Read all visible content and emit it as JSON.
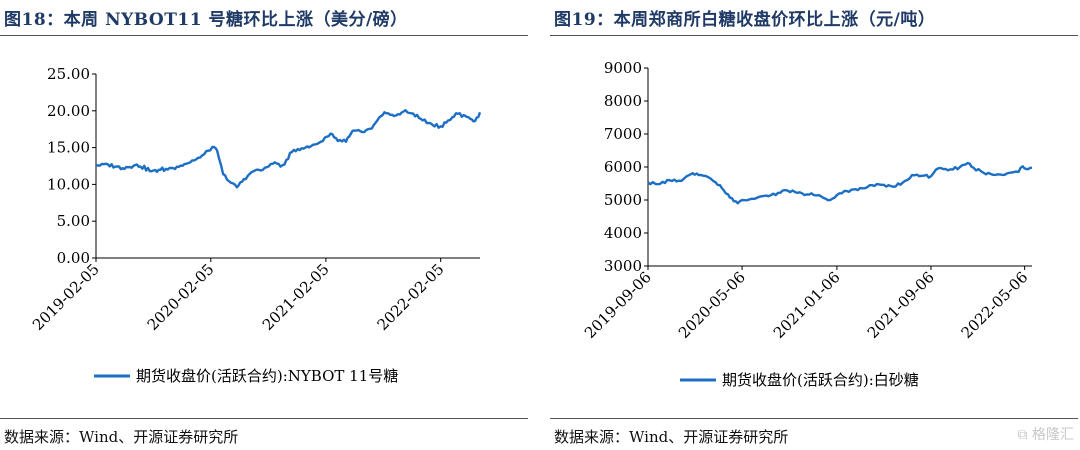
{
  "left": {
    "title": "图18：本周 NYBOT11 号糖环比上涨（美分/磅）",
    "source": "数据来源：Wind、开源证券研究所",
    "chart_data": {
      "type": "line",
      "title": "",
      "xlabel": "",
      "ylabel": "",
      "ylim": [
        0,
        25
      ],
      "y_ticks": [
        "0.00",
        "5.00",
        "10.00",
        "15.00",
        "20.00",
        "25.00"
      ],
      "x_ticks": [
        "2019-02-05",
        "2020-02-05",
        "2021-02-05",
        "2022-02-05"
      ],
      "x_range": [
        "2019-02-05",
        "2022-06-10"
      ],
      "grid": false,
      "legend_position": "bottom",
      "series": [
        {
          "name": "期货收盘价(活跃合约):NYBOT 11号糖",
          "color": "#1c6fc4",
          "points": [
            [
              "2019-02-05",
              12.6
            ],
            [
              "2019-03-15",
              12.7
            ],
            [
              "2019-05-01",
              12.2
            ],
            [
              "2019-06-15",
              12.7
            ],
            [
              "2019-08-01",
              11.8
            ],
            [
              "2019-09-15",
              12.1
            ],
            [
              "2019-10-20",
              12.4
            ],
            [
              "2019-11-25",
              12.9
            ],
            [
              "2019-12-20",
              13.4
            ],
            [
              "2020-01-15",
              14.1
            ],
            [
              "2020-02-10",
              15.1
            ],
            [
              "2020-02-25",
              14.6
            ],
            [
              "2020-03-15",
              11.4
            ],
            [
              "2020-04-10",
              10.2
            ],
            [
              "2020-04-28",
              9.6
            ],
            [
              "2020-05-20",
              10.7
            ],
            [
              "2020-06-20",
              11.8
            ],
            [
              "2020-07-20",
              12.0
            ],
            [
              "2020-08-20",
              12.8
            ],
            [
              "2020-09-20",
              12.6
            ],
            [
              "2020-10-20",
              14.4
            ],
            [
              "2020-11-20",
              14.9
            ],
            [
              "2020-12-20",
              15.2
            ],
            [
              "2021-01-20",
              15.8
            ],
            [
              "2021-02-20",
              16.9
            ],
            [
              "2021-03-15",
              15.9
            ],
            [
              "2021-04-10",
              15.8
            ],
            [
              "2021-05-01",
              17.3
            ],
            [
              "2021-06-01",
              17.1
            ],
            [
              "2021-07-01",
              17.6
            ],
            [
              "2021-08-10",
              19.8
            ],
            [
              "2021-09-10",
              19.3
            ],
            [
              "2021-10-10",
              19.9
            ],
            [
              "2021-11-10",
              19.6
            ],
            [
              "2021-12-10",
              18.7
            ],
            [
              "2022-01-10",
              18.1
            ],
            [
              "2022-02-05",
              17.9
            ],
            [
              "2022-03-01",
              18.7
            ],
            [
              "2022-04-01",
              19.6
            ],
            [
              "2022-04-25",
              19.3
            ],
            [
              "2022-05-10",
              18.9
            ],
            [
              "2022-05-25",
              18.6
            ],
            [
              "2022-06-10",
              19.8
            ]
          ]
        }
      ]
    }
  },
  "right": {
    "title": "图19：本周郑商所白糖收盘价环比上涨（元/吨）",
    "source": "数据来源：Wind、开源证券研究所",
    "chart_data": {
      "type": "line",
      "title": "",
      "xlabel": "",
      "ylabel": "",
      "ylim": [
        3000,
        9000
      ],
      "y_ticks": [
        "3000",
        "4000",
        "5000",
        "6000",
        "7000",
        "8000",
        "9000"
      ],
      "x_ticks": [
        "2019-09-06",
        "2020-05-06",
        "2021-01-06",
        "2021-09-06",
        "2022-05-06"
      ],
      "x_range": [
        "2019-09-06",
        "2022-05-25"
      ],
      "grid": false,
      "legend_position": "bottom",
      "series": [
        {
          "name": "期货收盘价(活跃合约):白砂糖",
          "color": "#1c6fc4",
          "points": [
            [
              "2019-09-06",
              5530
            ],
            [
              "2019-10-01",
              5480
            ],
            [
              "2019-11-01",
              5600
            ],
            [
              "2019-12-01",
              5580
            ],
            [
              "2019-12-20",
              5750
            ],
            [
              "2020-01-10",
              5800
            ],
            [
              "2020-01-20",
              5760
            ],
            [
              "2020-02-15",
              5650
            ],
            [
              "2020-03-10",
              5450
            ],
            [
              "2020-03-25",
              5200
            ],
            [
              "2020-04-10",
              5050
            ],
            [
              "2020-04-25",
              4900
            ],
            [
              "2020-05-06",
              5000
            ],
            [
              "2020-06-01",
              5040
            ],
            [
              "2020-07-01",
              5120
            ],
            [
              "2020-08-01",
              5150
            ],
            [
              "2020-08-25",
              5300
            ],
            [
              "2020-09-20",
              5240
            ],
            [
              "2020-10-20",
              5170
            ],
            [
              "2020-11-20",
              5150
            ],
            [
              "2020-12-20",
              5000
            ],
            [
              "2021-01-06",
              5150
            ],
            [
              "2021-02-01",
              5270
            ],
            [
              "2021-03-01",
              5300
            ],
            [
              "2021-04-01",
              5450
            ],
            [
              "2021-05-01",
              5460
            ],
            [
              "2021-06-01",
              5400
            ],
            [
              "2021-07-01",
              5580
            ],
            [
              "2021-07-25",
              5750
            ],
            [
              "2021-08-20",
              5740
            ],
            [
              "2021-09-06",
              5720
            ],
            [
              "2021-09-25",
              5960
            ],
            [
              "2021-10-20",
              5900
            ],
            [
              "2021-11-20",
              6000
            ],
            [
              "2021-12-10",
              6120
            ],
            [
              "2021-12-25",
              5980
            ],
            [
              "2022-01-20",
              5820
            ],
            [
              "2022-02-20",
              5760
            ],
            [
              "2022-03-10",
              5760
            ],
            [
              "2022-04-01",
              5830
            ],
            [
              "2022-04-20",
              5850
            ],
            [
              "2022-05-01",
              6020
            ],
            [
              "2022-05-10",
              5940
            ],
            [
              "2022-05-25",
              5980
            ]
          ]
        }
      ]
    }
  },
  "watermark": "格隆汇"
}
